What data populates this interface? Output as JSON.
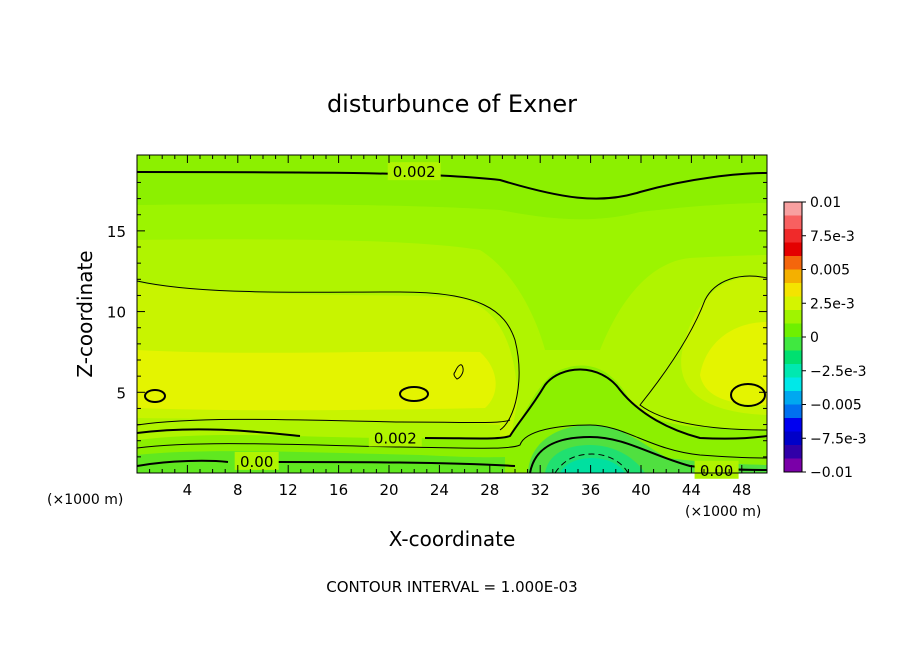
{
  "chart_data": {
    "type": "contour",
    "title": "disturbunce of Exner",
    "xlabel": "X-coordinate",
    "ylabel": "Z-coordinate",
    "x_unit_left": "(×1000 m)",
    "x_unit_right": "(×1000 m)",
    "xlim": [
      0,
      50
    ],
    "ylim": [
      0,
      19.7
    ],
    "x_ticks": [
      4,
      8,
      12,
      16,
      20,
      24,
      28,
      32,
      36,
      40,
      44,
      48
    ],
    "y_ticks": [
      5,
      10,
      15
    ],
    "x_tick_labels": [
      "4",
      "8",
      "12",
      "16",
      "20",
      "24",
      "28",
      "32",
      "36",
      "40",
      "44",
      "48"
    ],
    "y_tick_labels": [
      "5",
      "10",
      "15"
    ],
    "colorbar": {
      "labels": [
        "0.01",
        "7.5e-3",
        "0.005",
        "2.5e-3",
        "0",
        "−2.5e-3",
        "−0.005",
        "−7.5e-3",
        "−0.01"
      ],
      "colors": [
        "#f8a0a0",
        "#f86060",
        "#f02a2a",
        "#e40000",
        "#f4660c",
        "#f4b000",
        "#f4e400",
        "#d4f400",
        "#a0f400",
        "#6ef000",
        "#40e840",
        "#00e070",
        "#00e8b0",
        "#00e8e8",
        "#00a8f0",
        "#0070f0",
        "#0000f0",
        "#0000c8",
        "#3000a8",
        "#7a00a8"
      ]
    },
    "contour_labels": [
      {
        "text": "0.002",
        "x": 22,
        "z": 18.7
      },
      {
        "text": "0.002",
        "x": 20.5,
        "z": 2.2
      },
      {
        "text": "0.00",
        "x": 9.5,
        "z": 0.75
      },
      {
        "text": "0.00",
        "x": 46,
        "z": 0.2
      }
    ],
    "footer": "CONTOUR INTERVAL = 1.000E-03"
  }
}
